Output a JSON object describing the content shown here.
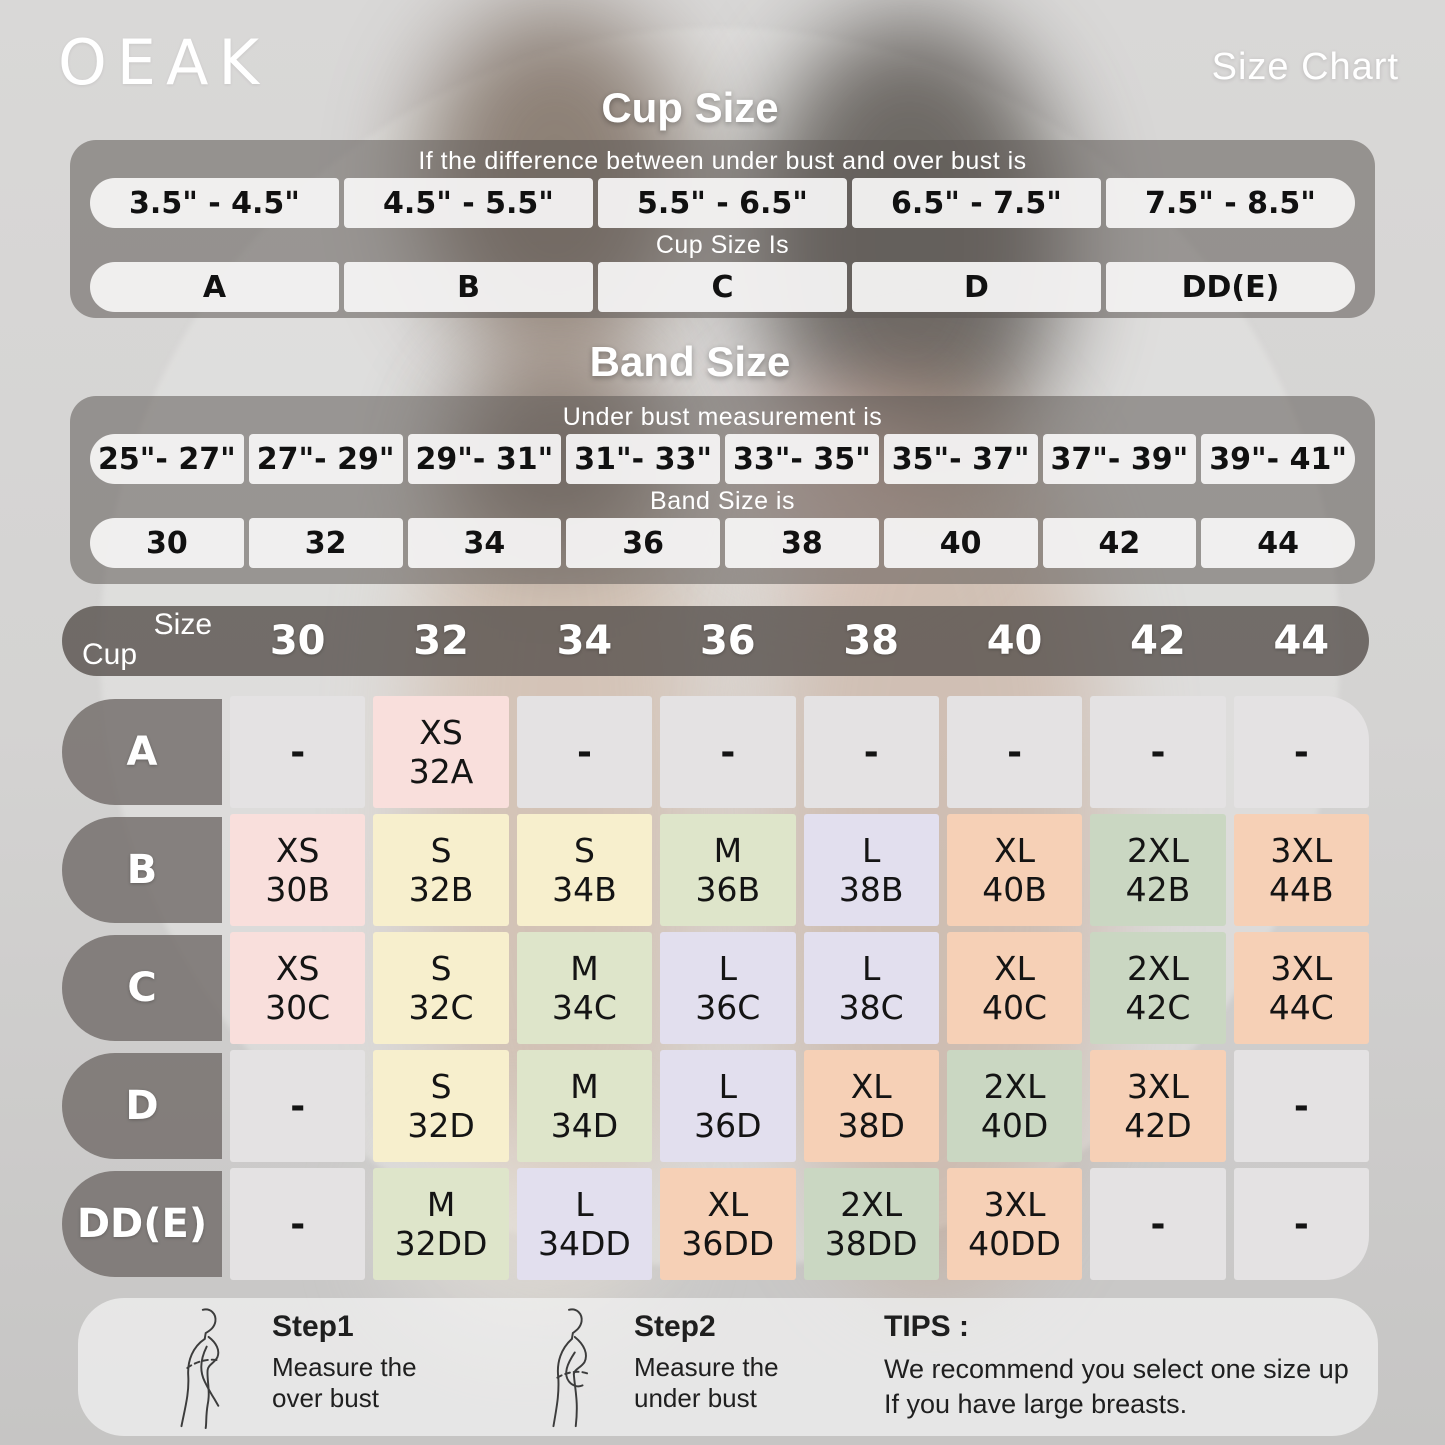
{
  "brand": "OEAK",
  "page_title": "Size Chart",
  "palette": {
    "gray": "#e4e2e3",
    "pink": "#f9dfdc",
    "yellow": "#f7efcd",
    "green": "#dee5ca",
    "lavender": "#e2dfee",
    "peach": "#f6d0b6",
    "sage": "#cad7c2",
    "panel_dark": "#5f5956",
    "text_dark": "#141414",
    "text_light": "#ffffff"
  },
  "cup_size_section": {
    "title": "Cup Size",
    "instruction": "If the  difference between under bust and over bust is",
    "ranges": [
      "3.5\" -  4.5\"",
      "4.5\" -  5.5\"",
      "5.5\" -  6.5\"",
      "6.5\" -  7.5\"",
      "7.5\" -  8.5\""
    ],
    "result_label": "Cup Size Is",
    "cups": [
      "A",
      "B",
      "C",
      "D",
      "DD(E)"
    ]
  },
  "band_size_section": {
    "title": "Band Size",
    "instruction": "Under bust measurement is",
    "ranges": [
      "25\"- 27\"",
      "27\"- 29\"",
      "29\"- 31\"",
      "31\"- 33\"",
      "33\"- 35\"",
      "35\"- 37\"",
      "37\"- 39\"",
      "39\"- 41\""
    ],
    "result_label": "Band Size is",
    "bands": [
      "30",
      "32",
      "34",
      "36",
      "38",
      "40",
      "42",
      "44"
    ]
  },
  "matrix": {
    "corner_top": "Size",
    "corner_bottom": "Cup",
    "columns": [
      "30",
      "32",
      "34",
      "36",
      "38",
      "40",
      "42",
      "44"
    ],
    "rows": [
      {
        "cup": "A",
        "cells": [
          {
            "label": "-",
            "color": "gray"
          },
          {
            "label": "XS",
            "code": "32A",
            "color": "pink"
          },
          {
            "label": "-",
            "color": "gray"
          },
          {
            "label": "-",
            "color": "gray"
          },
          {
            "label": "-",
            "color": "gray"
          },
          {
            "label": "-",
            "color": "gray"
          },
          {
            "label": "-",
            "color": "gray"
          },
          {
            "label": "-",
            "color": "gray"
          }
        ]
      },
      {
        "cup": "B",
        "cells": [
          {
            "label": "XS",
            "code": "30B",
            "color": "pink"
          },
          {
            "label": "S",
            "code": "32B",
            "color": "yellow"
          },
          {
            "label": "S",
            "code": "34B",
            "color": "yellow"
          },
          {
            "label": "M",
            "code": "36B",
            "color": "green"
          },
          {
            "label": "L",
            "code": "38B",
            "color": "lavender"
          },
          {
            "label": "XL",
            "code": "40B",
            "color": "peach"
          },
          {
            "label": "2XL",
            "code": "42B",
            "color": "sage"
          },
          {
            "label": "3XL",
            "code": "44B",
            "color": "peach"
          }
        ]
      },
      {
        "cup": "C",
        "cells": [
          {
            "label": "XS",
            "code": "30C",
            "color": "pink"
          },
          {
            "label": "S",
            "code": "32C",
            "color": "yellow"
          },
          {
            "label": "M",
            "code": "34C",
            "color": "green"
          },
          {
            "label": "L",
            "code": "36C",
            "color": "lavender"
          },
          {
            "label": "L",
            "code": "38C",
            "color": "lavender"
          },
          {
            "label": "XL",
            "code": "40C",
            "color": "peach"
          },
          {
            "label": "2XL",
            "code": "42C",
            "color": "sage"
          },
          {
            "label": "3XL",
            "code": "44C",
            "color": "peach"
          }
        ]
      },
      {
        "cup": "D",
        "cells": [
          {
            "label": "-",
            "color": "gray"
          },
          {
            "label": "S",
            "code": "32D",
            "color": "yellow"
          },
          {
            "label": "M",
            "code": "34D",
            "color": "green"
          },
          {
            "label": "L",
            "code": "36D",
            "color": "lavender"
          },
          {
            "label": "XL",
            "code": "38D",
            "color": "peach"
          },
          {
            "label": "2XL",
            "code": "40D",
            "color": "sage"
          },
          {
            "label": "3XL",
            "code": "42D",
            "color": "peach"
          },
          {
            "label": "-",
            "color": "gray"
          }
        ]
      },
      {
        "cup": "DD(E)",
        "cells": [
          {
            "label": "-",
            "color": "gray"
          },
          {
            "label": "M",
            "code": "32DD",
            "color": "green"
          },
          {
            "label": "L",
            "code": "34DD",
            "color": "lavender"
          },
          {
            "label": "XL",
            "code": "36DD",
            "color": "peach"
          },
          {
            "label": "2XL",
            "code": "38DD",
            "color": "sage"
          },
          {
            "label": "3XL",
            "code": "40DD",
            "color": "peach"
          },
          {
            "label": "-",
            "color": "gray"
          },
          {
            "label": "-",
            "color": "gray"
          }
        ]
      }
    ]
  },
  "footer": {
    "step1": {
      "title": "Step1",
      "line1": "Measure the",
      "line2": "over bust"
    },
    "step2": {
      "title": "Step2",
      "line1": "Measure the",
      "line2": "under bust"
    },
    "tips_title": "TIPS :",
    "tips_line1": "We recommend you select one size up",
    "tips_line2": "If you have large breasts."
  },
  "chart_data": {
    "type": "table",
    "title": "Size Chart",
    "cup_size_lookup": {
      "note": "If the difference between under bust and over bust is",
      "difference_ranges_inches": [
        "3.5-4.5",
        "4.5-5.5",
        "5.5-6.5",
        "6.5-7.5",
        "7.5-8.5"
      ],
      "cup_sizes": [
        "A",
        "B",
        "C",
        "D",
        "DD(E)"
      ]
    },
    "band_size_lookup": {
      "note": "Under bust measurement is",
      "underbust_ranges_inches": [
        "25-27",
        "27-29",
        "29-31",
        "31-33",
        "33-35",
        "35-37",
        "37-39",
        "39-41"
      ],
      "band_sizes": [
        30,
        32,
        34,
        36,
        38,
        40,
        42,
        44
      ]
    },
    "size_matrix": {
      "columns": [
        30,
        32,
        34,
        36,
        38,
        40,
        42,
        44
      ],
      "rows": [
        {
          "cup": "A",
          "cells": [
            "-",
            "XS 32A",
            "-",
            "-",
            "-",
            "-",
            "-",
            "-"
          ]
        },
        {
          "cup": "B",
          "cells": [
            "XS 30B",
            "S 32B",
            "S 34B",
            "M 36B",
            "L 38B",
            "XL 40B",
            "2XL 42B",
            "3XL 44B"
          ]
        },
        {
          "cup": "C",
          "cells": [
            "XS 30C",
            "S 32C",
            "M 34C",
            "L 36C",
            "L 38C",
            "XL 40C",
            "2XL 42C",
            "3XL 44C"
          ]
        },
        {
          "cup": "D",
          "cells": [
            "-",
            "S 32D",
            "M 34D",
            "L 36D",
            "XL 38D",
            "2XL 40D",
            "3XL 42D",
            "-"
          ]
        },
        {
          "cup": "DD(E)",
          "cells": [
            "-",
            "M 32DD",
            "L 34DD",
            "XL 36DD",
            "2XL 38DD",
            "3XL 40DD",
            "-",
            "-"
          ]
        }
      ]
    }
  }
}
